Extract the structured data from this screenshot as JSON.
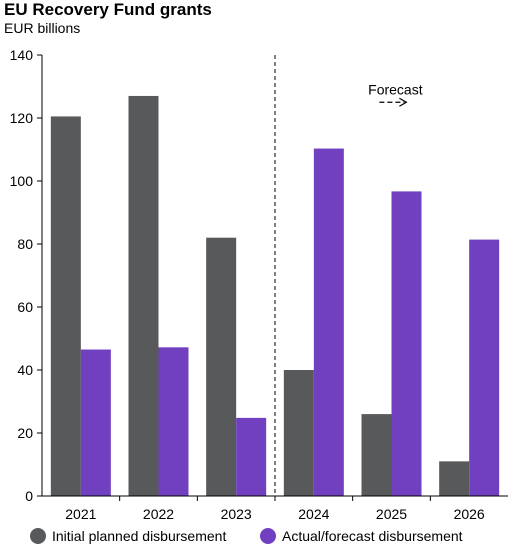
{
  "chart_data": {
    "type": "bar",
    "title": "EU Recovery Fund grants",
    "subtitle": "EUR billions",
    "categories": [
      "2021",
      "2022",
      "2023",
      "2024",
      "2025",
      "2026"
    ],
    "series": [
      {
        "name": "Initial planned disbursement",
        "color": "#58595b",
        "values": [
          120.5,
          127,
          82,
          40,
          26,
          11
        ]
      },
      {
        "name": "Actual/forecast disbursement",
        "color": "#7140c0",
        "values": [
          46.5,
          47.2,
          24.8,
          110.3,
          96.7,
          81.4
        ]
      }
    ],
    "ylim": [
      0,
      140
    ],
    "yticks": [
      0,
      20,
      40,
      60,
      80,
      100,
      120,
      140
    ],
    "annotation": {
      "label": "Forecast",
      "arrow": "- - →",
      "divider_after_category": "2023"
    },
    "legend_position": "bottom"
  }
}
